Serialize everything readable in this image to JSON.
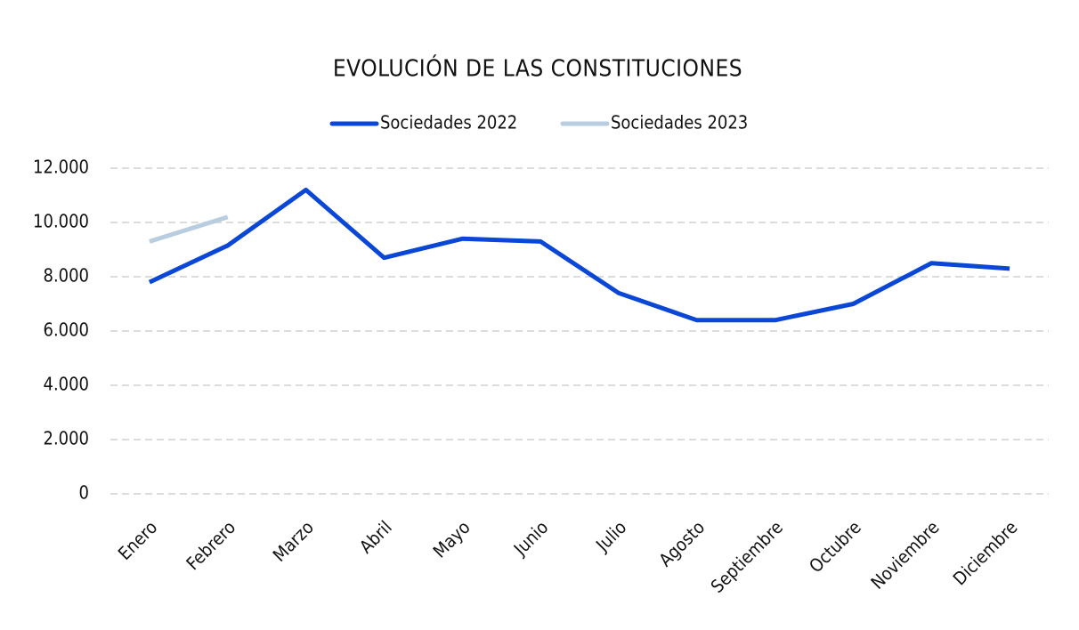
{
  "chart_data": {
    "type": "line",
    "title": "EVOLUCIÓN DE LAS CONSTITUCIONES",
    "categories": [
      "Enero",
      "Febrero",
      "Marzo",
      "Abril",
      "Mayo",
      "Junio",
      "Julio",
      "Agosto",
      "Septiembre",
      "Octubre",
      "Noviembre",
      "Diciembre"
    ],
    "series": [
      {
        "name": "Sociedades 2022",
        "color": "#0a47d6",
        "values": [
          7800,
          9150,
          11200,
          8700,
          9400,
          9300,
          7400,
          6400,
          6400,
          7000,
          8500,
          8300
        ]
      },
      {
        "name": "Sociedades 2023",
        "color": "#b8cde0",
        "values": [
          9300,
          10200,
          null,
          null,
          null,
          null,
          null,
          null,
          null,
          null,
          null,
          null
        ]
      }
    ],
    "ylim": [
      0,
      12000
    ],
    "yticks": [
      0,
      {
        "value": 2000,
        "label": "2.000"
      },
      {
        "value": 4000,
        "label": "4.000"
      },
      {
        "value": 6000,
        "label": "6.000"
      },
      {
        "value": 8000,
        "label": "8.000"
      },
      {
        "value": 10000,
        "label": "10.000"
      },
      {
        "value": 12000,
        "label": "12.000"
      }
    ],
    "grid": true,
    "legend": "top"
  }
}
